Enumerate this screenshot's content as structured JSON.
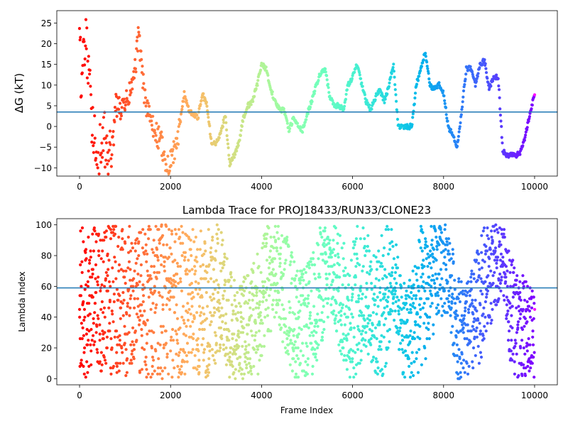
{
  "colors": {
    "reference_line": "#1f77b4",
    "colormap": "rainbow"
  },
  "chart_data": [
    {
      "type": "scatter",
      "title": "",
      "xlabel": "",
      "ylabel": "ΔG (kT)",
      "xlim": [
        -500,
        10500
      ],
      "ylim": [
        -12,
        28
      ],
      "xticks": [
        "0",
        "2000",
        "4000",
        "6000",
        "8000",
        "10000"
      ],
      "yticks": [
        "−10",
        "−5",
        "0",
        "5",
        "10",
        "15",
        "20",
        "25"
      ],
      "reference_line": 3.5,
      "color_encoding": "frame index, rainbow colormap (red at frame 0 → purple at frame 10000)",
      "trace_keypoints": {
        "frame": [
          0,
          50,
          100,
          150,
          200,
          250,
          300,
          350,
          400,
          450,
          500,
          600,
          700,
          800,
          900,
          1000,
          1100,
          1200,
          1300,
          1400,
          1500,
          1600,
          1700,
          1800,
          1900,
          2000,
          2100,
          2200,
          2300,
          2400,
          2500,
          2600,
          2700,
          2800,
          2900,
          3000,
          3100,
          3200,
          3300,
          3400,
          3500,
          3600,
          3700,
          3800,
          3900,
          4000,
          4100,
          4200,
          4300,
          4400,
          4500,
          4600,
          4700,
          4800,
          4900,
          5000,
          5100,
          5200,
          5300,
          5400,
          5500,
          5600,
          5700,
          5800,
          5900,
          6000,
          6100,
          6200,
          6300,
          6400,
          6500,
          6600,
          6700,
          6800,
          6900,
          7000,
          7100,
          7200,
          7300,
          7400,
          7500,
          7600,
          7700,
          7800,
          7900,
          8000,
          8100,
          8200,
          8300,
          8400,
          8500,
          8600,
          8700,
          8800,
          8900,
          9000,
          9100,
          9200,
          9300,
          9400,
          9500,
          9600,
          9700,
          9800,
          9900,
          10000
        ],
        "dG": [
          20,
          10,
          18,
          22,
          10,
          5,
          0,
          -5,
          -8,
          -6,
          -2,
          -5,
          -8,
          5,
          4,
          5,
          8,
          12,
          22,
          10,
          3,
          0,
          -2,
          -4,
          -11,
          -8,
          -6,
          0,
          8,
          4,
          3,
          2,
          8,
          5,
          -4,
          -4,
          -2,
          3,
          -9,
          -7,
          -4,
          2,
          5,
          6,
          10,
          15,
          14,
          9,
          6,
          4,
          4,
          -1,
          2,
          0,
          -1,
          3,
          6,
          10,
          13,
          14,
          7,
          5,
          5,
          4,
          10,
          12,
          15,
          10,
          6,
          4,
          7,
          9,
          6,
          10,
          15,
          0,
          0,
          0,
          0,
          10,
          14,
          18,
          10,
          9,
          10,
          8,
          0,
          -2,
          -5,
          4,
          14,
          14,
          10,
          15,
          16,
          9,
          12,
          12,
          -6,
          -7,
          -7,
          -7,
          -6,
          -2,
          3,
          8
        ]
      }
    },
    {
      "type": "scatter",
      "title": "Lambda Trace for PROJ18433/RUN33/CLONE23",
      "xlabel": "Frame Index",
      "ylabel": "Lambda Index",
      "xlim": [
        -500,
        10500
      ],
      "ylim": [
        -4,
        104
      ],
      "xticks": [
        "0",
        "2000",
        "4000",
        "6000",
        "8000",
        "10000"
      ],
      "yticks": [
        "0",
        "20",
        "40",
        "60",
        "80",
        "100"
      ],
      "reference_line": 59,
      "color_encoding": "frame index, rainbow colormap (red at frame 0 → purple at frame 10000)",
      "band_keypoints": {
        "frame": [
          0,
          500,
          1000,
          1500,
          2000,
          2500,
          2700,
          2900,
          3100,
          3300,
          3500,
          3700,
          3900,
          4100,
          4300,
          4500,
          4700,
          4900,
          5100,
          5300,
          5500,
          5700,
          5900,
          6100,
          6300,
          6500,
          6700,
          6900,
          7100,
          7300,
          7500,
          7700,
          7900,
          8100,
          8300,
          8500,
          8700,
          8900,
          9100,
          9300,
          9500,
          9700,
          9900,
          10000
        ],
        "lambda_low": [
          0,
          0,
          0,
          0,
          0,
          0,
          0,
          0,
          20,
          0,
          0,
          0,
          0,
          20,
          40,
          20,
          0,
          0,
          0,
          20,
          40,
          20,
          0,
          0,
          20,
          0,
          0,
          40,
          0,
          0,
          0,
          20,
          40,
          40,
          0,
          0,
          0,
          20,
          40,
          60,
          0,
          0,
          0,
          0
        ],
        "lambda_high": [
          100,
          100,
          100,
          100,
          100,
          100,
          100,
          100,
          100,
          70,
          60,
          70,
          80,
          100,
          100,
          100,
          80,
          70,
          80,
          100,
          100,
          100,
          80,
          100,
          100,
          80,
          100,
          100,
          60,
          70,
          100,
          100,
          100,
          100,
          70,
          60,
          80,
          100,
          100,
          100,
          80,
          70,
          60,
          60
        ]
      }
    }
  ]
}
